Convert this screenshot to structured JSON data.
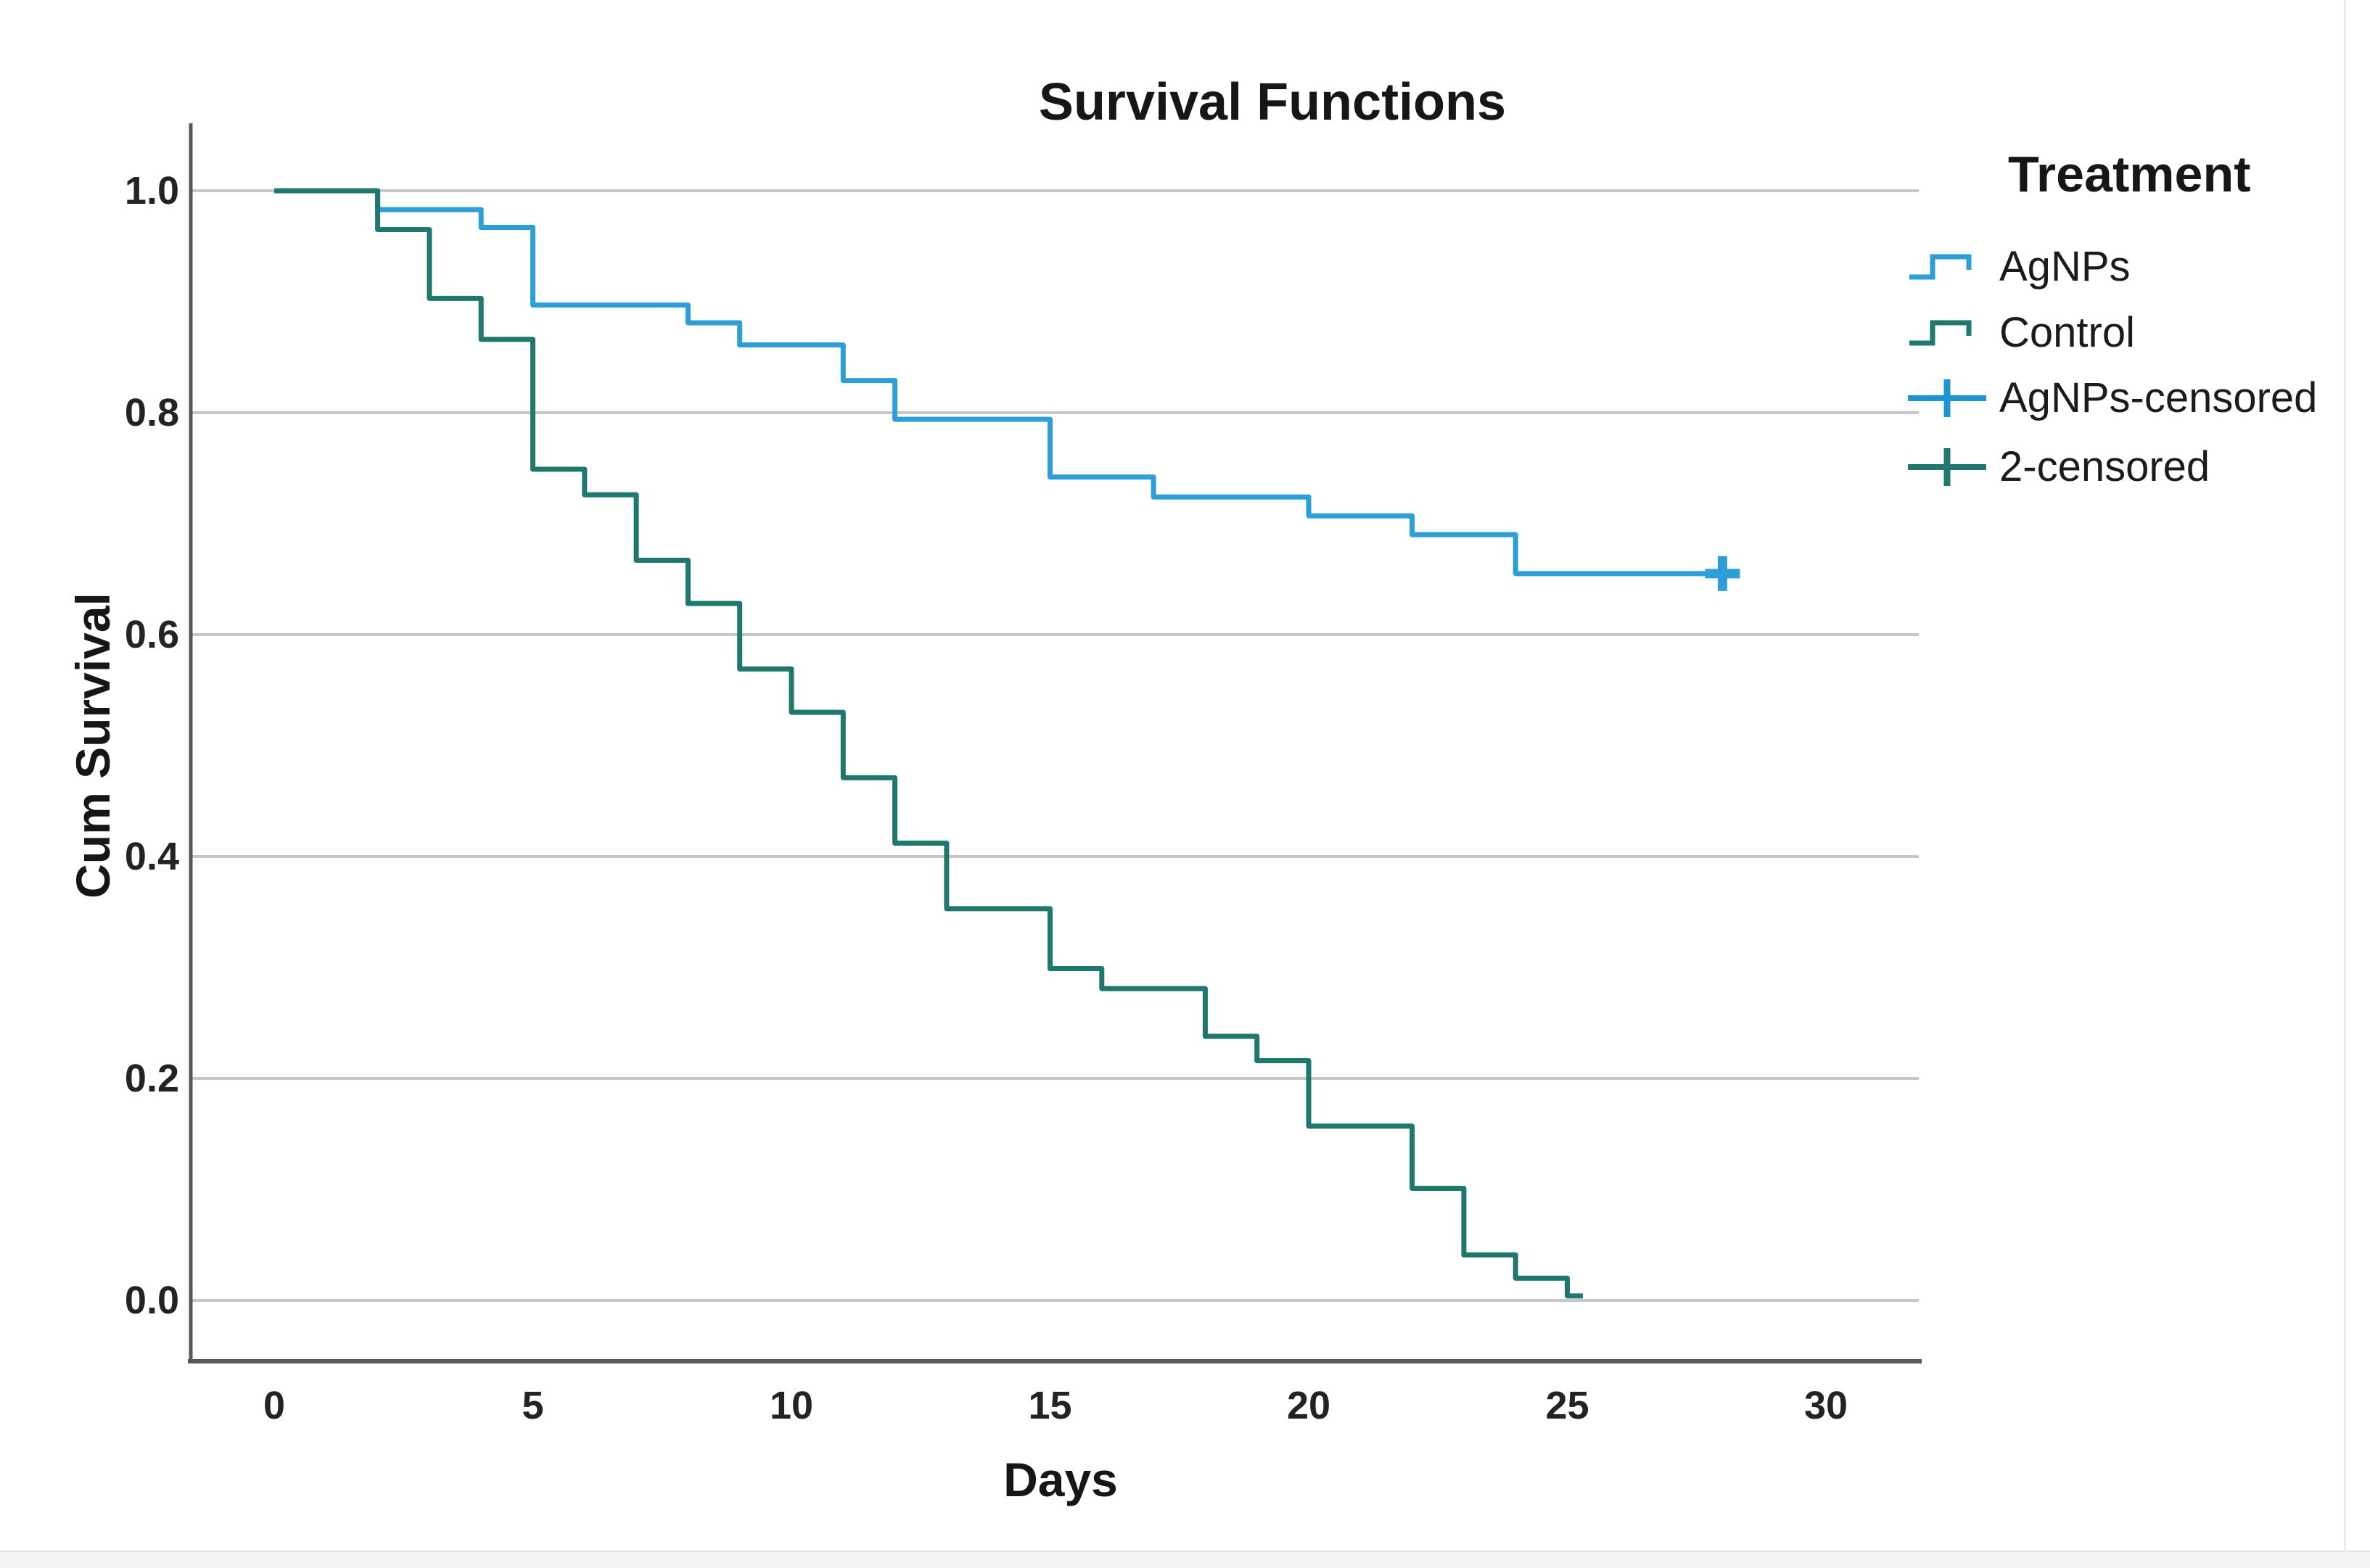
{
  "page": {
    "background": "#ffffff",
    "footer_strip_color": "#f4f3f3",
    "right_border_color": "#ececec"
  },
  "chart_data": {
    "type": "line",
    "subtype": "kaplan-meier-step",
    "title": "Survival Functions",
    "xlabel": "Days",
    "ylabel": "Cum Survival",
    "x_ticks": [
      {
        "label": "0",
        "v": 0
      },
      {
        "label": "5",
        "v": 5
      },
      {
        "label": "10",
        "v": 10
      },
      {
        "label": "15",
        "v": 15
      },
      {
        "label": "20",
        "v": 20
      },
      {
        "label": "25",
        "v": 25
      },
      {
        "label": "30",
        "v": 30
      }
    ],
    "y_ticks": [
      {
        "label": "1.0",
        "v": 1.0
      },
      {
        "label": "0.8",
        "v": 0.8
      },
      {
        "label": "0.6",
        "v": 0.6
      },
      {
        "label": "0.4",
        "v": 0.4
      },
      {
        "label": "0.2",
        "v": 0.2
      },
      {
        "label": "0.0",
        "v": 0.0
      }
    ],
    "xlim": [
      -1.6,
      31.8
    ],
    "ylim": [
      -0.05,
      1.06
    ],
    "grid": "horizontal",
    "gridline_color": "#c7c7c7",
    "axis_color": "#58585a",
    "legend_position": "right",
    "legend": {
      "title": "Treatment",
      "items": [
        {
          "label": "AgNPs",
          "symbol": "step",
          "color": "#2d9fd6"
        },
        {
          "label": "Control",
          "symbol": "step",
          "color": "#1f776d"
        },
        {
          "label": "AgNPs-censored",
          "symbol": "plus",
          "color": "#1b96d3"
        },
        {
          "label": "2-censored",
          "symbol": "plus",
          "color": "#1f776d"
        }
      ]
    },
    "series": [
      {
        "name": "AgNPs",
        "color": "#2d9fd6",
        "points": [
          [
            0,
            1.0
          ],
          [
            2,
            0.983
          ],
          [
            4,
            0.967
          ],
          [
            5,
            0.897
          ],
          [
            8,
            0.881
          ],
          [
            9,
            0.861
          ],
          [
            11,
            0.829
          ],
          [
            12,
            0.794
          ],
          [
            15,
            0.742
          ],
          [
            17,
            0.724
          ],
          [
            20,
            0.707
          ],
          [
            22,
            0.69
          ],
          [
            24,
            0.655
          ]
        ],
        "end_day": 28,
        "censored": [
          [
            28,
            0.655
          ]
        ]
      },
      {
        "name": "Control",
        "color": "#1f776d",
        "points": [
          [
            0,
            1.0
          ],
          [
            2,
            0.965
          ],
          [
            3,
            0.903
          ],
          [
            4,
            0.866
          ],
          [
            5,
            0.749
          ],
          [
            6,
            0.726
          ],
          [
            7,
            0.667
          ],
          [
            8,
            0.628
          ],
          [
            9,
            0.569
          ],
          [
            10,
            0.53
          ],
          [
            11,
            0.471
          ],
          [
            12,
            0.412
          ],
          [
            13,
            0.353
          ],
          [
            15,
            0.299
          ],
          [
            16,
            0.281
          ],
          [
            18,
            0.238
          ],
          [
            19,
            0.216
          ],
          [
            20,
            0.157
          ],
          [
            22,
            0.101
          ],
          [
            23,
            0.041
          ],
          [
            24,
            0.02
          ],
          [
            25,
            0.004
          ]
        ],
        "end_day": 25.3,
        "censored": []
      }
    ]
  }
}
